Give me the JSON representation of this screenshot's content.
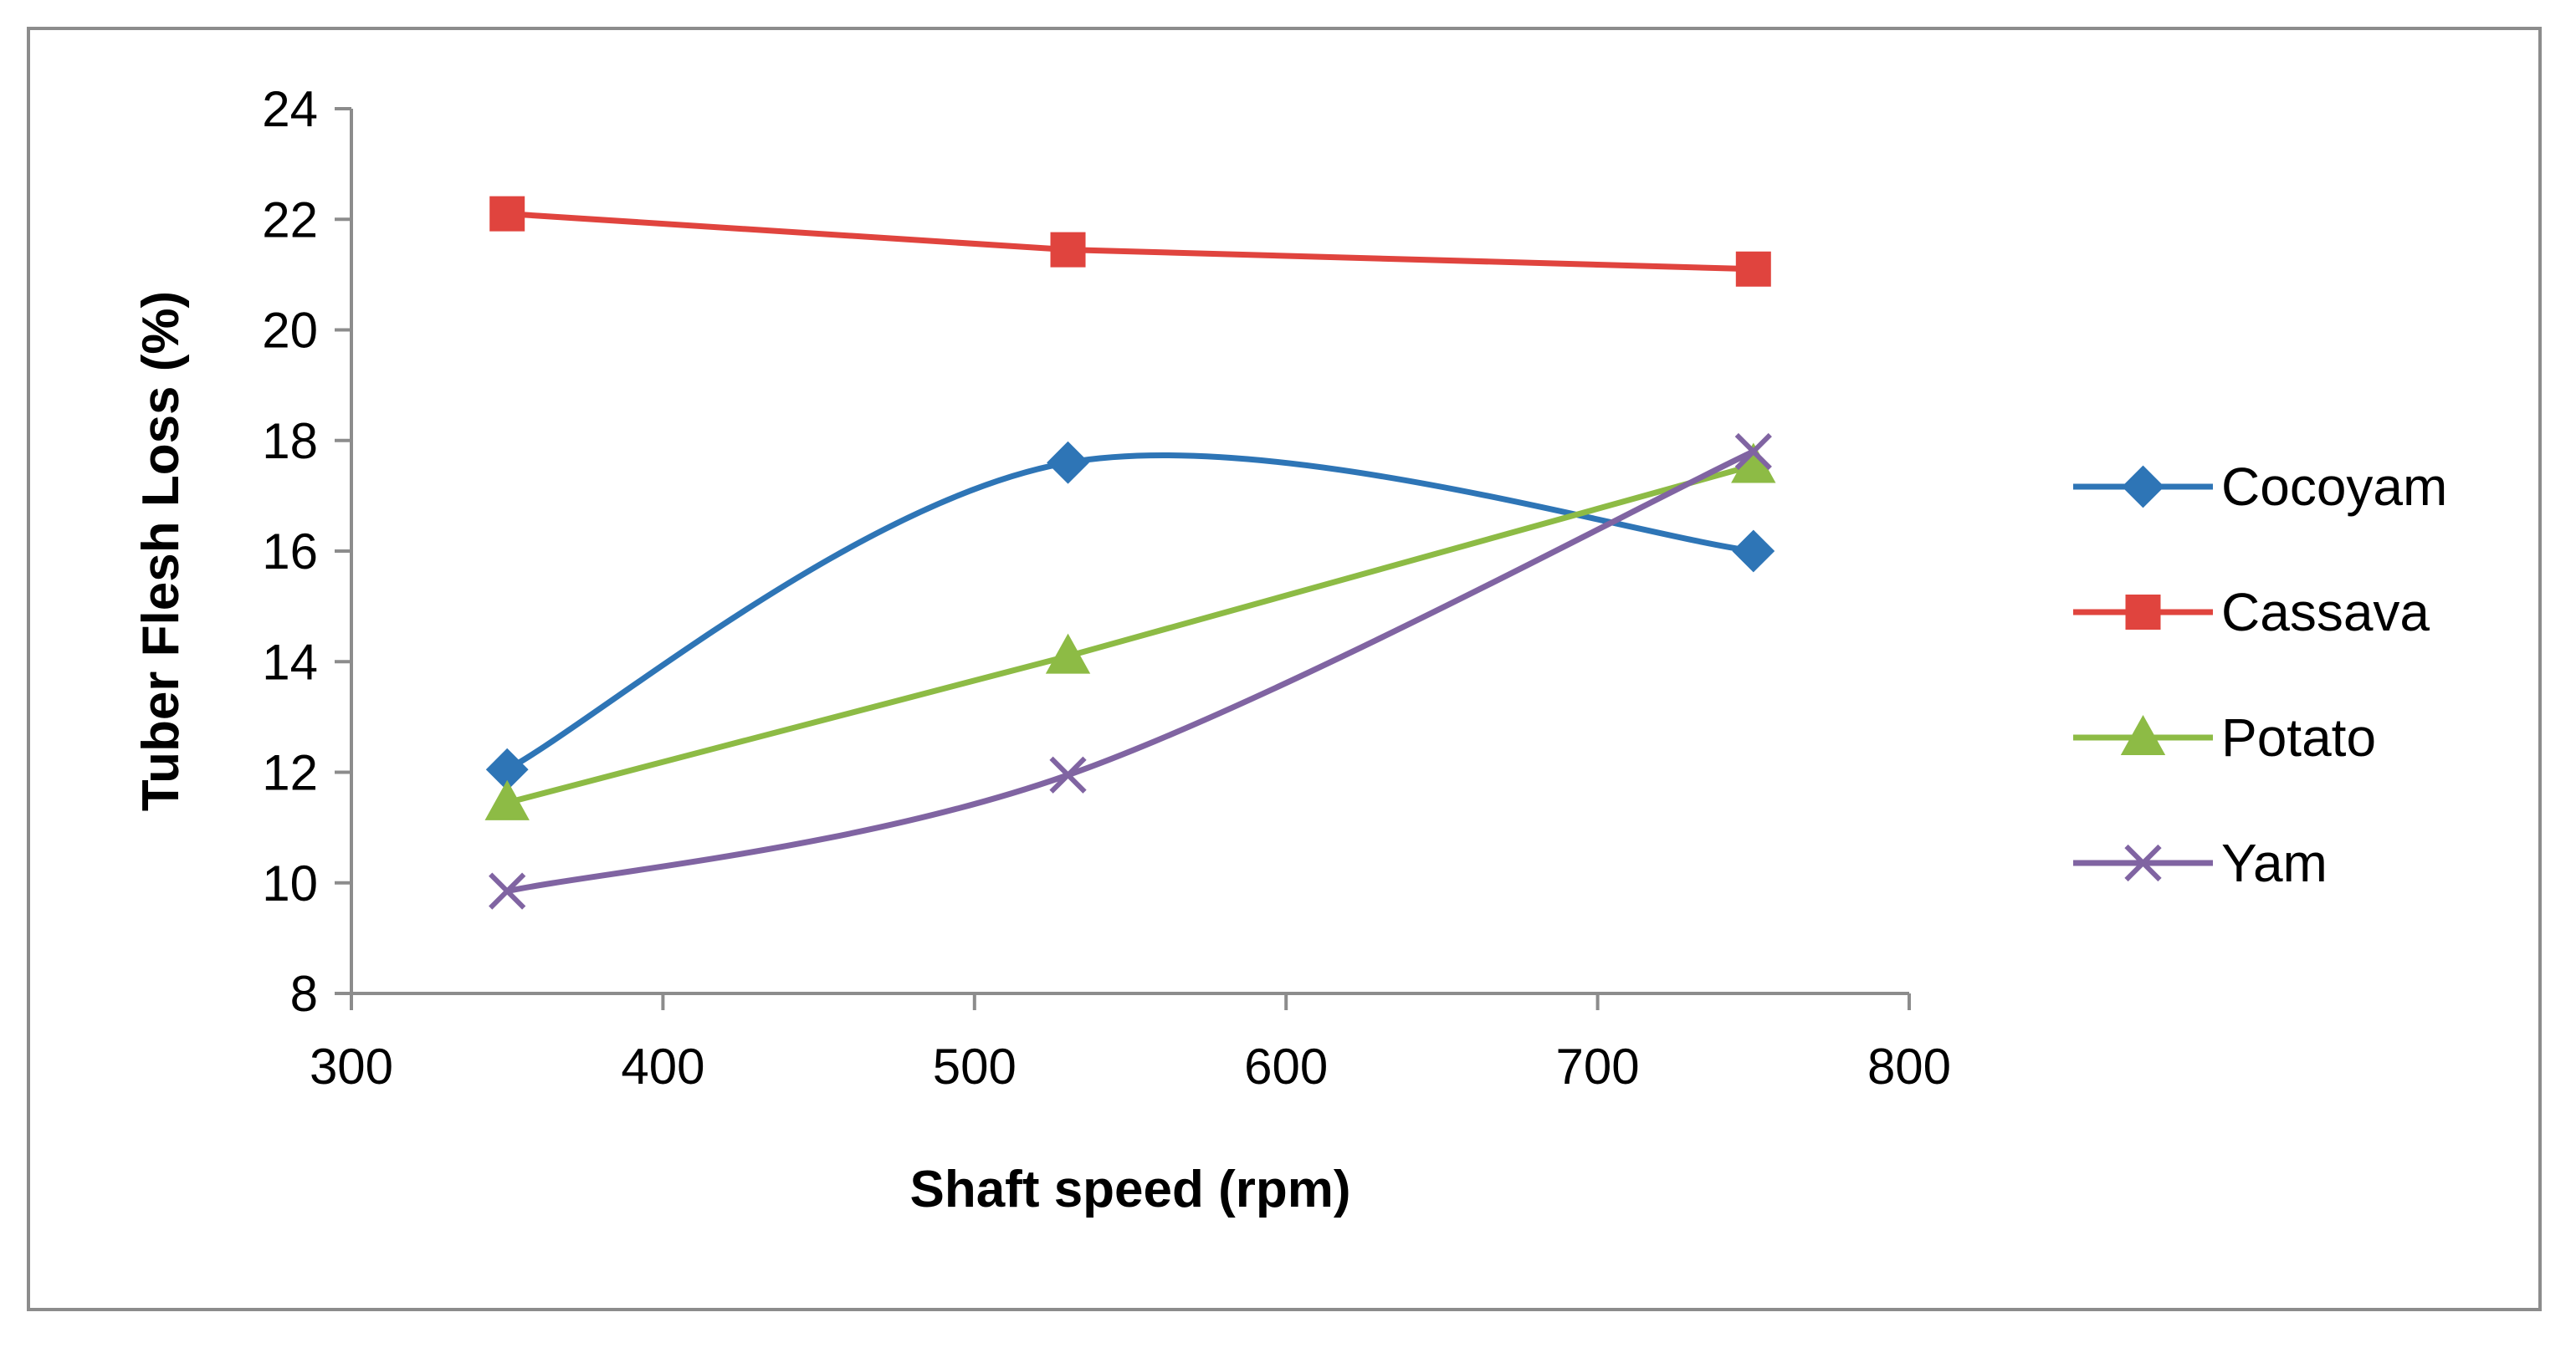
{
  "chart_data": {
    "type": "line",
    "title": "",
    "xlabel": "Shaft speed (rpm)",
    "ylabel": "Tuber Flesh Loss (%)",
    "xlim": [
      300,
      800
    ],
    "ylim": [
      8,
      24
    ],
    "xticks": [
      300,
      400,
      500,
      600,
      700,
      800
    ],
    "yticks": [
      8,
      10,
      12,
      14,
      16,
      18,
      20,
      22,
      24
    ],
    "grid": false,
    "legend_position": "right",
    "x": [
      350,
      530,
      750
    ],
    "series": [
      {
        "name": "Cocoyam",
        "values": [
          12.05,
          17.6,
          16.0
        ],
        "color": "#2e75b6",
        "marker": "diamond",
        "smooth": true
      },
      {
        "name": "Cassava",
        "values": [
          22.1,
          21.45,
          21.1
        ],
        "color": "#e0443e",
        "marker": "square",
        "smooth": false
      },
      {
        "name": "Potato",
        "values": [
          11.45,
          14.1,
          17.55
        ],
        "color": "#8dbb45",
        "marker": "triangle",
        "smooth": false
      },
      {
        "name": "Yam",
        "values": [
          9.85,
          11.95,
          17.8
        ],
        "color": "#8064a2",
        "marker": "x",
        "smooth": true
      }
    ]
  }
}
